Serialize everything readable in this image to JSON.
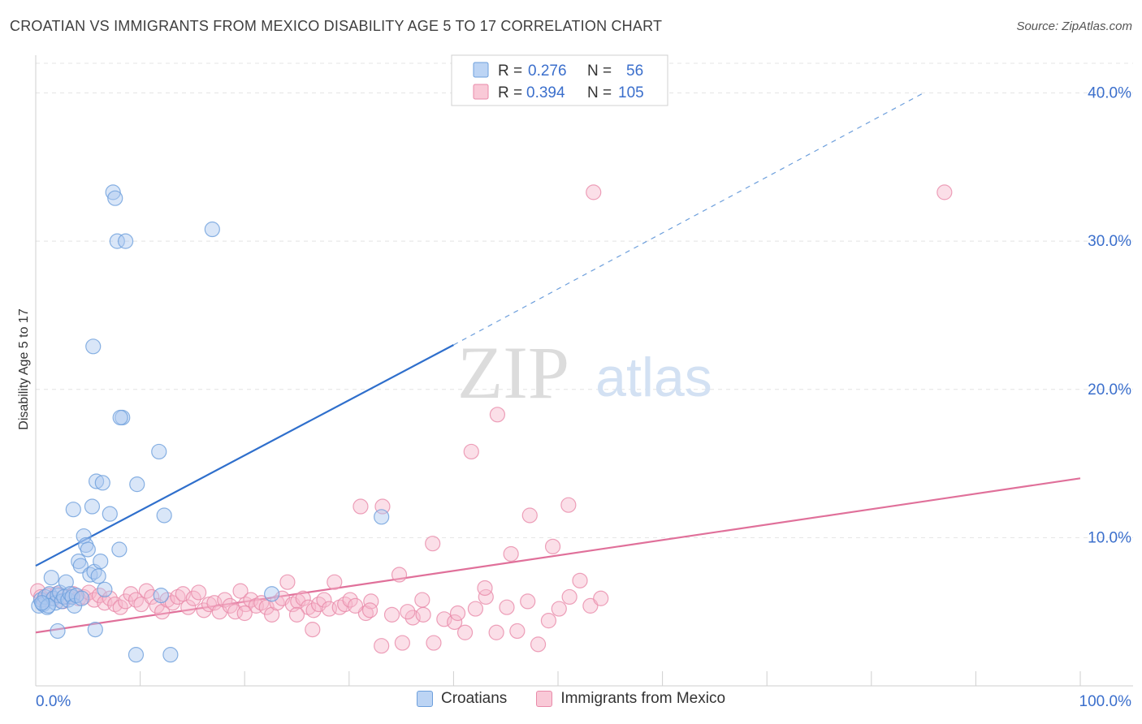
{
  "title": "CROATIAN VS IMMIGRANTS FROM MEXICO DISABILITY AGE 5 TO 17 CORRELATION CHART",
  "source": "Source: ZipAtlas.com",
  "watermark": {
    "zip": "ZIP",
    "atlas": "atlas"
  },
  "colors": {
    "blue_fill": "#aac8f0",
    "blue_stroke": "#6d9fdc",
    "blue_line": "#2f6fcc",
    "pink_fill": "#f6b9cb",
    "pink_stroke": "#e98aa9",
    "pink_line": "#e0709a",
    "axis_text": "#3b6fcc"
  },
  "stats_legend": [
    {
      "r_label": "R = ",
      "r_value": "0.276",
      "n_label": "N = ",
      "n_value": "56"
    },
    {
      "r_label": "R = ",
      "r_value": "0.394",
      "n_label": "N = ",
      "n_value": "105"
    }
  ],
  "chart_data": {
    "type": "scatter",
    "title": "CROATIAN VS IMMIGRANTS FROM MEXICO DISABILITY AGE 5 TO 17 CORRELATION CHART",
    "xlabel": "",
    "ylabel": "Disability Age 5 to 17",
    "xlim": [
      0,
      100
    ],
    "ylim": [
      0,
      42
    ],
    "x_tick_labels": [
      "0.0%",
      "100.0%"
    ],
    "y_ticks": [
      10,
      20,
      30,
      40
    ],
    "y_tick_labels": [
      "10.0%",
      "20.0%",
      "30.0%",
      "40.0%"
    ],
    "grid": true,
    "legend_position": "top-center",
    "series": [
      {
        "name": "Croatians",
        "color": "#6d9fdc",
        "r": 0.276,
        "n": 56,
        "trend": {
          "x0": 0,
          "y0": 8.1,
          "x1": 40,
          "y1": 23.0,
          "dashed_to_x": 85,
          "dashed_to_y": 40.0
        },
        "points": [
          [
            0.3,
            5.4
          ],
          [
            0.5,
            5.8
          ],
          [
            0.7,
            5.5
          ],
          [
            0.9,
            6.0
          ],
          [
            1.1,
            5.3
          ],
          [
            1.3,
            6.2
          ],
          [
            1.5,
            7.3
          ],
          [
            1.7,
            5.9
          ],
          [
            1.9,
            5.6
          ],
          [
            2.1,
            6.1
          ],
          [
            2.3,
            6.3
          ],
          [
            2.5,
            5.7
          ],
          [
            2.7,
            6.0
          ],
          [
            2.9,
            7.0
          ],
          [
            3.1,
            5.8
          ],
          [
            3.3,
            6.2
          ],
          [
            3.5,
            6.0
          ],
          [
            3.7,
            5.4
          ],
          [
            3.9,
            6.1
          ],
          [
            4.1,
            8.4
          ],
          [
            4.3,
            8.1
          ],
          [
            4.6,
            10.1
          ],
          [
            4.8,
            9.5
          ],
          [
            5.0,
            9.2
          ],
          [
            5.2,
            7.5
          ],
          [
            5.4,
            12.1
          ],
          [
            5.6,
            7.7
          ],
          [
            5.8,
            13.8
          ],
          [
            6.0,
            7.4
          ],
          [
            6.2,
            8.4
          ],
          [
            6.4,
            13.7
          ],
          [
            6.6,
            6.5
          ],
          [
            3.6,
            11.9
          ],
          [
            7.1,
            11.6
          ],
          [
            7.4,
            33.3
          ],
          [
            7.6,
            32.9
          ],
          [
            7.8,
            30.0
          ],
          [
            8.0,
            9.2
          ],
          [
            8.3,
            18.1
          ],
          [
            8.6,
            30.0
          ],
          [
            8.1,
            18.1
          ],
          [
            9.6,
            2.1
          ],
          [
            9.7,
            13.6
          ],
          [
            11.8,
            15.8
          ],
          [
            12.3,
            11.5
          ],
          [
            12.9,
            2.1
          ],
          [
            16.9,
            30.8
          ],
          [
            22.6,
            6.2
          ],
          [
            33.1,
            11.4
          ],
          [
            2.1,
            3.7
          ],
          [
            5.7,
            3.8
          ],
          [
            5.5,
            22.9
          ],
          [
            1.2,
            5.4
          ],
          [
            0.6,
            5.6
          ],
          [
            12.0,
            6.1
          ],
          [
            4.4,
            5.9
          ]
        ]
      },
      {
        "name": "Immigrants from Mexico",
        "color": "#e98aa9",
        "r": 0.394,
        "n": 105,
        "trend": {
          "x0": 0,
          "y0": 3.6,
          "x1": 100,
          "y1": 14.0
        },
        "points": [
          [
            0.2,
            6.4
          ],
          [
            0.5,
            6.0
          ],
          [
            0.8,
            5.8
          ],
          [
            1.2,
            6.1
          ],
          [
            1.6,
            5.9
          ],
          [
            2.0,
            6.2
          ],
          [
            2.6,
            5.7
          ],
          [
            3.1,
            6.0
          ],
          [
            3.6,
            6.2
          ],
          [
            4.1,
            5.9
          ],
          [
            4.6,
            6.0
          ],
          [
            5.1,
            6.3
          ],
          [
            5.6,
            5.8
          ],
          [
            6.1,
            6.1
          ],
          [
            6.6,
            5.6
          ],
          [
            7.1,
            5.9
          ],
          [
            7.6,
            5.5
          ],
          [
            8.1,
            5.3
          ],
          [
            8.6,
            5.7
          ],
          [
            9.1,
            6.2
          ],
          [
            9.6,
            5.8
          ],
          [
            10.1,
            5.5
          ],
          [
            10.6,
            6.4
          ],
          [
            11.1,
            6.0
          ],
          [
            11.6,
            5.4
          ],
          [
            12.1,
            5.0
          ],
          [
            12.6,
            5.8
          ],
          [
            13.1,
            5.6
          ],
          [
            13.6,
            6.0
          ],
          [
            14.1,
            6.2
          ],
          [
            14.6,
            5.3
          ],
          [
            15.1,
            5.9
          ],
          [
            15.6,
            6.3
          ],
          [
            16.1,
            5.1
          ],
          [
            16.6,
            5.5
          ],
          [
            17.1,
            5.6
          ],
          [
            17.6,
            5.0
          ],
          [
            18.1,
            5.8
          ],
          [
            18.6,
            5.4
          ],
          [
            19.1,
            5.0
          ],
          [
            19.6,
            6.4
          ],
          [
            20.1,
            5.5
          ],
          [
            20.6,
            5.8
          ],
          [
            21.1,
            5.4
          ],
          [
            21.6,
            5.6
          ],
          [
            22.1,
            5.3
          ],
          [
            22.6,
            4.8
          ],
          [
            23.1,
            5.6
          ],
          [
            23.6,
            5.9
          ],
          [
            24.1,
            7.0
          ],
          [
            24.6,
            5.5
          ],
          [
            25.1,
            5.7
          ],
          [
            25.6,
            5.9
          ],
          [
            26.1,
            5.3
          ],
          [
            26.6,
            5.1
          ],
          [
            27.1,
            5.5
          ],
          [
            27.6,
            5.8
          ],
          [
            28.1,
            5.2
          ],
          [
            28.6,
            7.0
          ],
          [
            29.1,
            5.3
          ],
          [
            29.6,
            5.5
          ],
          [
            30.1,
            5.8
          ],
          [
            31.1,
            12.1
          ],
          [
            31.6,
            4.9
          ],
          [
            32.1,
            5.7
          ],
          [
            33.1,
            2.7
          ],
          [
            34.1,
            4.8
          ],
          [
            35.1,
            2.9
          ],
          [
            36.1,
            4.6
          ],
          [
            37.1,
            4.8
          ],
          [
            38.1,
            2.9
          ],
          [
            39.1,
            4.5
          ],
          [
            40.1,
            4.3
          ],
          [
            41.1,
            3.6
          ],
          [
            42.1,
            5.2
          ],
          [
            43.1,
            6.0
          ],
          [
            44.1,
            3.6
          ],
          [
            45.1,
            5.3
          ],
          [
            46.1,
            3.7
          ],
          [
            47.1,
            5.7
          ],
          [
            48.1,
            2.8
          ],
          [
            49.1,
            4.4
          ],
          [
            50.1,
            5.2
          ],
          [
            51.1,
            6.0
          ],
          [
            52.1,
            7.1
          ],
          [
            53.1,
            5.4
          ],
          [
            54.1,
            5.9
          ],
          [
            44.2,
            18.3
          ],
          [
            41.7,
            15.8
          ],
          [
            38.0,
            9.6
          ],
          [
            33.2,
            12.1
          ],
          [
            47.3,
            11.5
          ],
          [
            51.0,
            12.2
          ],
          [
            45.5,
            8.9
          ],
          [
            34.8,
            7.5
          ],
          [
            37.0,
            5.8
          ],
          [
            26.5,
            3.8
          ],
          [
            25.0,
            4.8
          ],
          [
            32.0,
            5.1
          ],
          [
            20.0,
            4.9
          ],
          [
            49.5,
            9.4
          ],
          [
            43.0,
            6.6
          ],
          [
            53.4,
            33.3
          ],
          [
            87.0,
            33.3
          ],
          [
            35.6,
            5.0
          ],
          [
            40.4,
            4.9
          ],
          [
            30.6,
            5.4
          ]
        ]
      }
    ]
  }
}
